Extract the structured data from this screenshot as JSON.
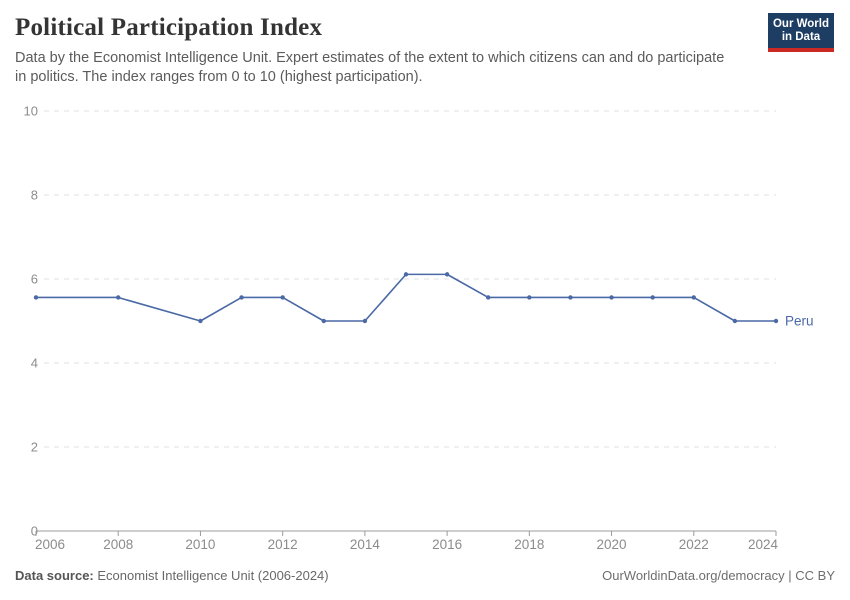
{
  "header": {
    "title": "Political Participation Index",
    "subtitle_lines": [
      "Data by the Economist Intelligence Unit. Expert estimates of the extent to which citizens can and do participate",
      "in politics. The index ranges from 0 to 10 (highest participation)."
    ],
    "logo": {
      "line1": "Our World",
      "line2": "in Data",
      "bg_color": "#1d3d63",
      "accent_color": "#cb2a24"
    }
  },
  "footer": {
    "data_source_label": "Data source:",
    "data_source_value": "Economist Intelligence Unit (2006-2024)",
    "credit": "OurWorldinData.org/democracy | CC BY"
  },
  "chart_data": {
    "type": "line",
    "title": "Political Participation Index",
    "entity_label": "Peru",
    "x": [
      2006,
      2008,
      2010,
      2011,
      2012,
      2013,
      2014,
      2015,
      2016,
      2017,
      2018,
      2019,
      2020,
      2021,
      2022,
      2023,
      2024
    ],
    "values": [
      5.56,
      5.56,
      5.0,
      5.56,
      5.56,
      5.0,
      5.0,
      6.11,
      6.11,
      5.56,
      5.56,
      5.56,
      5.56,
      5.56,
      5.56,
      5.0,
      5.0
    ],
    "x_ticks": [
      2006,
      2008,
      2010,
      2012,
      2014,
      2016,
      2018,
      2020,
      2022,
      2024
    ],
    "y_ticks": [
      0,
      2,
      4,
      6,
      8,
      10
    ],
    "xlim": [
      2006,
      2024
    ],
    "ylim": [
      0,
      10
    ],
    "grid": "horizontal-dashed",
    "legend_position": "end-of-line",
    "colors": {
      "line": "#4a69a5",
      "tick_label": "#8c8c8c",
      "grid": "#e0e0e0",
      "axis": "#9b9b9b"
    }
  }
}
